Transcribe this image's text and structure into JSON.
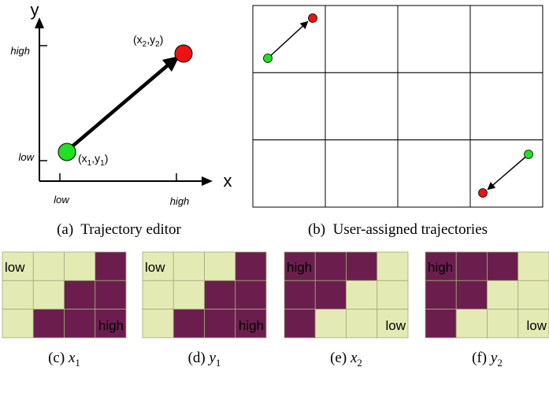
{
  "panel_a": {
    "axis_x_label": "x",
    "axis_y_label": "y",
    "tick_y_high": "high",
    "tick_y_low": "low",
    "tick_x_low": "low",
    "tick_x_high": "high",
    "start_point": {
      "var": "x",
      "sub": "1",
      "var2": "y",
      "sub2": "1",
      "color": "#22e022"
    },
    "end_point": {
      "var": "x",
      "sub": "2",
      "var2": "y",
      "sub2": "2",
      "color": "#ee1111"
    },
    "caption": "(a)  Trajectory editor"
  },
  "panel_b": {
    "grid_rows": 3,
    "grid_cols": 4,
    "caption": "(b)  User-assigned trajectories"
  },
  "heatmaps": [
    {
      "caption_prefix": "(c)",
      "caption_var": "x",
      "caption_sub": "1",
      "cells": [
        [
          0,
          0,
          0,
          1
        ],
        [
          0,
          0,
          1,
          1
        ],
        [
          0,
          1,
          1,
          1
        ]
      ],
      "label_top": "low",
      "label_bottom": "high"
    },
    {
      "caption_prefix": "(d)",
      "caption_var": "y",
      "caption_sub": "1",
      "cells": [
        [
          0,
          0,
          0,
          1
        ],
        [
          0,
          0,
          1,
          1
        ],
        [
          0,
          1,
          1,
          1
        ]
      ],
      "label_top": "low",
      "label_bottom": "high"
    },
    {
      "caption_prefix": "(e)",
      "caption_var": "x",
      "caption_sub": "2",
      "cells": [
        [
          1,
          1,
          1,
          0
        ],
        [
          1,
          1,
          0,
          0
        ],
        [
          1,
          0,
          0,
          0
        ]
      ],
      "label_top": "high",
      "label_bottom": "low"
    },
    {
      "caption_prefix": "(f)",
      "caption_var": "y",
      "caption_sub": "2",
      "cells": [
        [
          1,
          1,
          1,
          0
        ],
        [
          1,
          1,
          0,
          0
        ],
        [
          1,
          0,
          0,
          0
        ]
      ],
      "label_top": "high",
      "label_bottom": "low"
    }
  ],
  "colors": {
    "cell_dark": "#6b1e4e",
    "cell_light": "#e4eab4",
    "cell_border": "#a3a87a",
    "start_green": "#22e022",
    "end_red": "#ee1111"
  }
}
